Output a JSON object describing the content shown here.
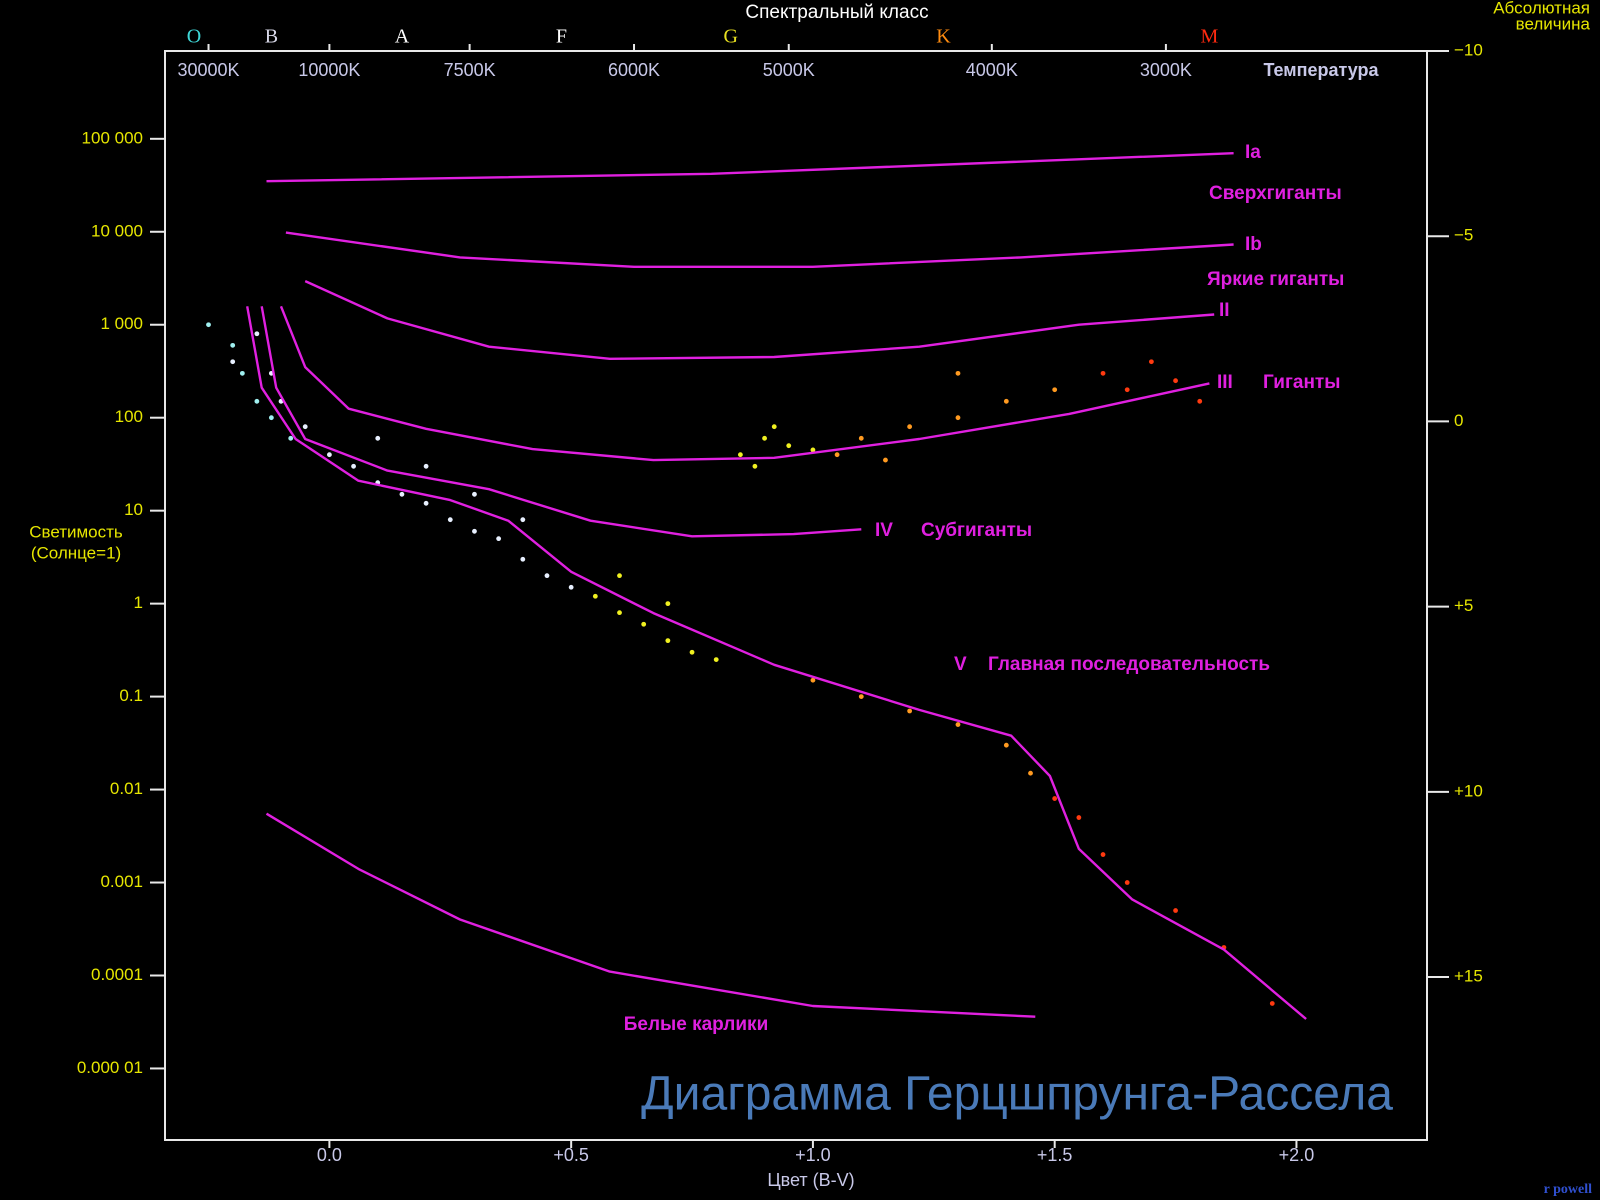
{
  "chart_data": {
    "type": "scatter",
    "title": "Диаграмма Герцшпрунга-Рассела",
    "credit": "r powell",
    "top_title": "Спектральный класс",
    "x2label": "Температура",
    "xlabel": "Цвет (B-V)",
    "ylabel": [
      "Светимость",
      "(Солнце=1)"
    ],
    "y2label": [
      "Абсолютная",
      "величина"
    ],
    "xlim": [
      -0.34,
      2.27
    ],
    "xticks": [
      {
        "value": 0,
        "label": "0.0"
      },
      {
        "value": 0.5,
        "label": "+0.5"
      },
      {
        "value": 1,
        "label": "+1.0"
      },
      {
        "value": 1.5,
        "label": "+1.5"
      },
      {
        "value": 2,
        "label": "+2.0"
      }
    ],
    "x2ticks": [
      {
        "value": -0.25,
        "label": "30000K"
      },
      {
        "value": 0.0,
        "label": "10000K"
      },
      {
        "value": 0.29,
        "label": "7500K"
      },
      {
        "value": 0.63,
        "label": "6000K"
      },
      {
        "value": 0.95,
        "label": "5000K"
      },
      {
        "value": 1.37,
        "label": "4000K"
      },
      {
        "value": 1.73,
        "label": "3000K"
      }
    ],
    "spectral_classes": [
      {
        "label": "O",
        "x": -0.28,
        "color": "#3fd6d6"
      },
      {
        "label": "B",
        "x": -0.12,
        "color": "#d8d8e8"
      },
      {
        "label": "A",
        "x": 0.15,
        "color": "#ffffff"
      },
      {
        "label": "F",
        "x": 0.48,
        "color": "#ffffff"
      },
      {
        "label": "G",
        "x": 0.83,
        "color": "#e8e020"
      },
      {
        "label": "K",
        "x": 1.27,
        "color": "#ff8c10"
      },
      {
        "label": "M",
        "x": 1.82,
        "color": "#ff2a10"
      }
    ],
    "ylog": true,
    "ylim": [
      1.7e-06,
      880000
    ],
    "yticks": [
      {
        "value": 100000,
        "label": "100 000"
      },
      {
        "value": 10000,
        "label": "10 000"
      },
      {
        "value": 1000,
        "label": "1 000"
      },
      100,
      10,
      1,
      0.1,
      0.01,
      0.001,
      0.0001,
      {
        "value": 1e-05,
        "label": "0.000 01"
      }
    ],
    "y2lim": [
      19.4,
      -10
    ],
    "y2ticks": [
      {
        "value": -10,
        "label": "−10"
      },
      {
        "value": -5,
        "label": "−5"
      },
      0,
      {
        "value": 5,
        "label": "+5"
      },
      {
        "value": 10,
        "label": "+10"
      },
      {
        "value": 15,
        "label": "+15"
      }
    ],
    "line_color": "#e020e0",
    "lines": [
      {
        "x": [
          -0.13,
          0.79,
          1.87
        ],
        "y": [
          35000,
          42000,
          70000
        ]
      },
      {
        "x": [
          -0.09,
          0.27,
          0.63,
          1.0,
          1.43,
          1.87
        ],
        "y": [
          9800,
          5300,
          4200,
          4200,
          5300,
          7300
        ]
      },
      {
        "x": [
          -0.05,
          0.12,
          0.33,
          0.58,
          0.92,
          1.22,
          1.55,
          1.83
        ],
        "y": [
          2950,
          1170,
          580,
          430,
          450,
          580,
          1000,
          1290
        ]
      },
      {
        "x": [
          -0.1,
          -0.05,
          0.04,
          0.2,
          0.42,
          0.67,
          0.92,
          1.22,
          1.53,
          1.82
        ],
        "y": [
          1580,
          350,
          125,
          76,
          46,
          35,
          37,
          59,
          110,
          234
        ]
      },
      {
        "x": [
          -0.14,
          -0.11,
          -0.05,
          0.12,
          0.33,
          0.54,
          0.75,
          0.96,
          1.1
        ],
        "y": [
          1580,
          210,
          59,
          27,
          17,
          7.8,
          5.3,
          5.6,
          6.3
        ]
      },
      {
        "x": [
          -0.17,
          -0.14,
          -0.07,
          0.06,
          0.25,
          0.37,
          0.5,
          0.67,
          0.92,
          1.22,
          1.41,
          1.49,
          1.55,
          1.66,
          1.85,
          2.02
        ],
        "y": [
          1580,
          210,
          59,
          21,
          13,
          7.8,
          2.2,
          0.79,
          0.22,
          0.072,
          0.038,
          0.014,
          0.0023,
          0.00066,
          0.00019,
          3.4e-05
        ]
      },
      {
        "x": [
          -0.13,
          0.06,
          0.27,
          0.58,
          1.0,
          1.46
        ],
        "y": [
          0.0055,
          0.0014,
          0.0004,
          0.00011,
          4.7e-05,
          3.6e-05
        ]
      }
    ],
    "annotations": [
      "Ia",
      "Сверхгиганты",
      "Ib",
      "Яркие гиганты",
      "II",
      "III",
      "Гиганты",
      "IV",
      "Субгиганты",
      "V",
      "Главная последовательность",
      "Белые карлики"
    ],
    "series": [
      {
        "color": "#e8f0ff",
        "x": [
          -0.15,
          -0.12,
          -0.1,
          -0.05,
          0.0,
          0.05,
          0.1,
          0.15,
          0.2,
          0.25,
          0.3,
          0.35,
          0.4,
          0.45,
          0.5,
          0.1,
          0.2,
          0.3,
          -0.2,
          0.4
        ],
        "y": [
          800,
          300,
          150,
          80,
          40,
          30,
          20,
          15,
          12,
          8,
          6,
          5,
          3,
          2,
          1.5,
          60,
          30,
          15,
          400,
          8
        ]
      },
      {
        "color": "#a0f0f0",
        "x": [
          -0.2,
          -0.18,
          -0.15,
          -0.12,
          -0.08,
          -0.25
        ],
        "y": [
          600,
          300,
          150,
          100,
          60,
          1000
        ]
      },
      {
        "color": "#f0f020",
        "x": [
          0.55,
          0.6,
          0.65,
          0.7,
          0.75,
          0.8,
          0.85,
          0.9,
          0.88,
          0.95,
          0.92,
          1.0,
          0.6,
          0.7
        ],
        "y": [
          1.2,
          0.8,
          0.6,
          0.4,
          0.3,
          0.25,
          40,
          60,
          30,
          50,
          80,
          45,
          2,
          1
        ]
      },
      {
        "color": "#ff9a20",
        "x": [
          1.05,
          1.1,
          1.2,
          1.3,
          1.4,
          1.5,
          1.0,
          1.1,
          1.2,
          1.3,
          1.4,
          1.45,
          1.3,
          1.15
        ],
        "y": [
          40,
          60,
          80,
          100,
          150,
          200,
          0.15,
          0.1,
          0.07,
          0.05,
          0.03,
          0.015,
          300,
          35
        ]
      },
      {
        "color": "#ff3a10",
        "x": [
          1.6,
          1.65,
          1.7,
          1.75,
          1.55,
          1.6,
          1.65,
          1.75,
          1.85,
          1.95,
          1.5,
          1.8
        ],
        "y": [
          300,
          200,
          400,
          250,
          0.005,
          0.002,
          0.001,
          0.0005,
          0.0002,
          5e-05,
          0.008,
          150
        ]
      }
    ]
  }
}
